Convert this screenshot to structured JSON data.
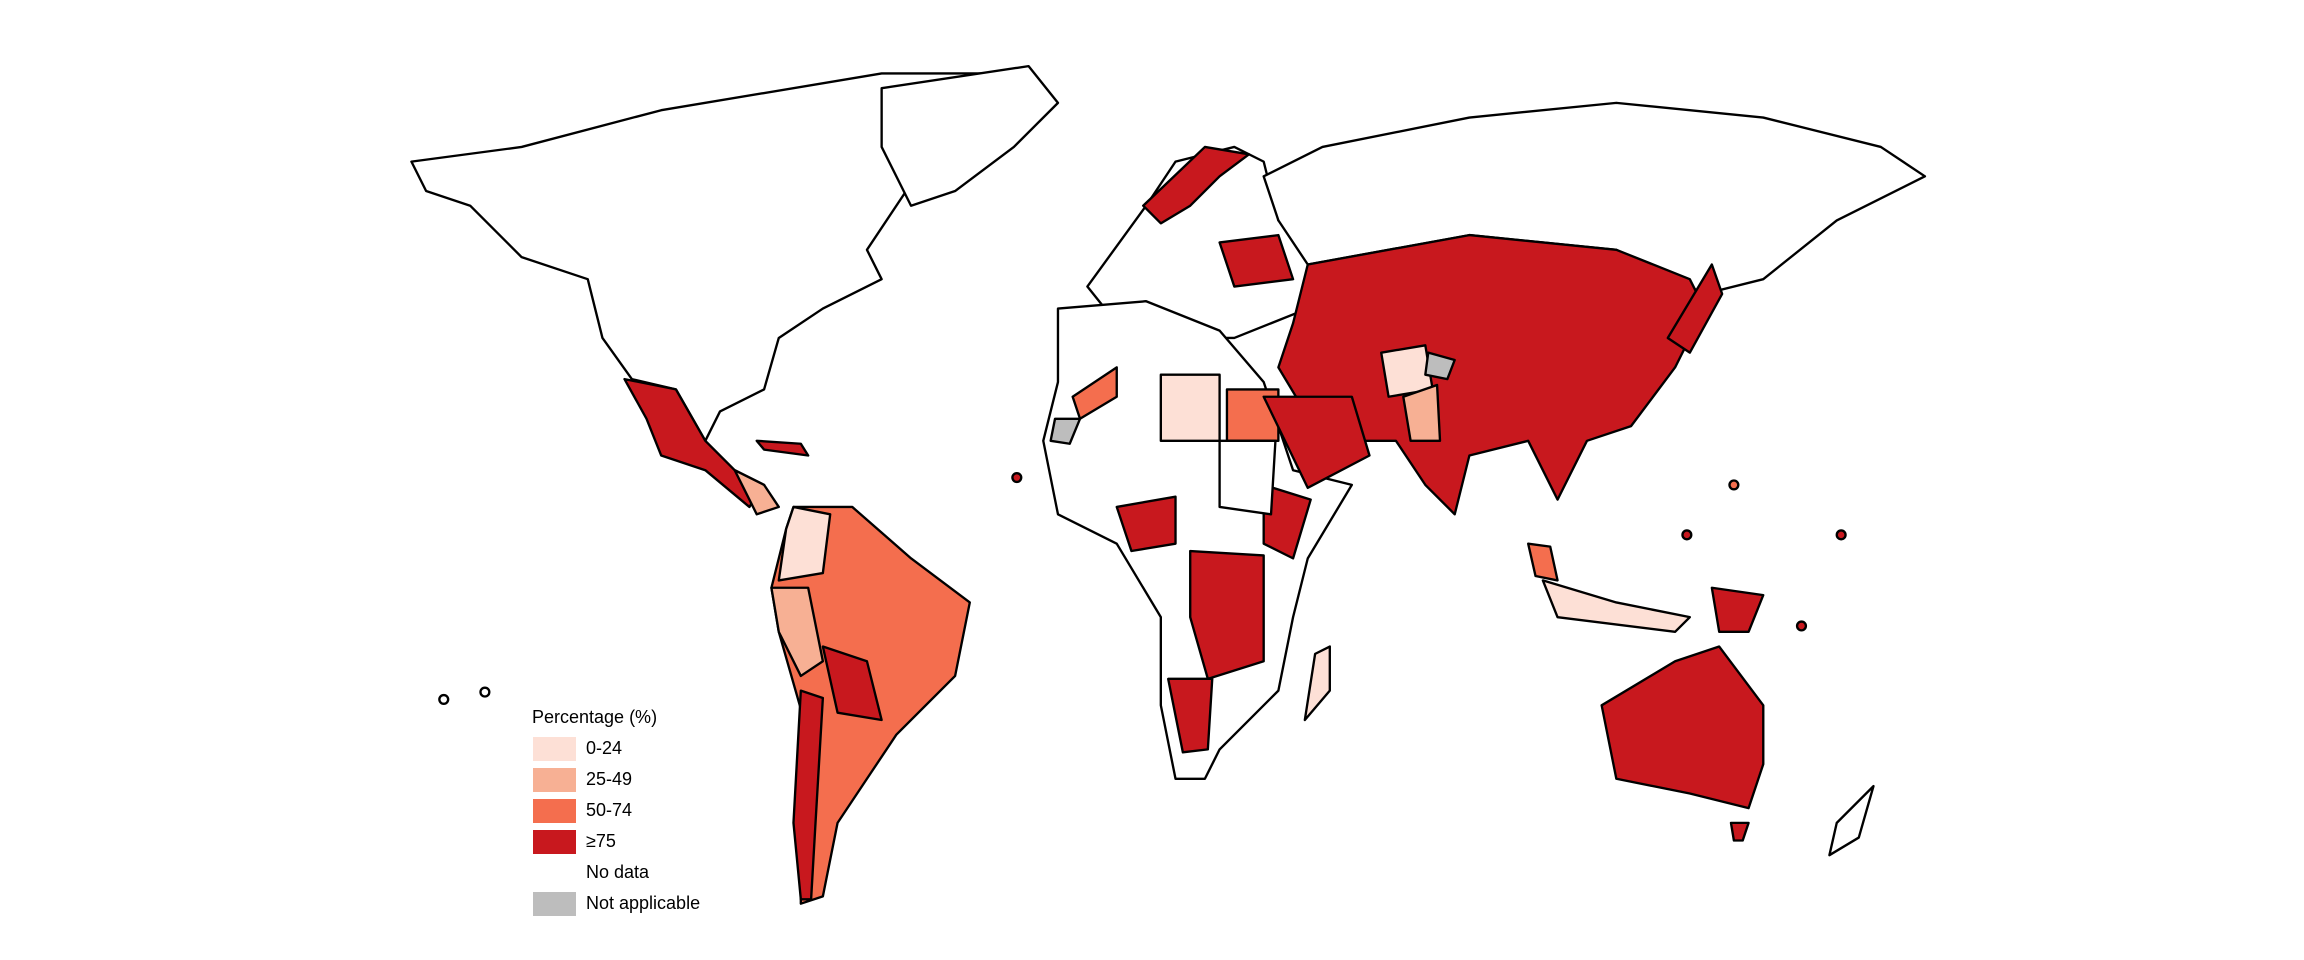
{
  "legend": {
    "title": "Percentage (%)",
    "items": [
      {
        "label": "0-24",
        "color": "#fde0d6"
      },
      {
        "label": "25-49",
        "color": "#f7b094"
      },
      {
        "label": "50-74",
        "color": "#f46e4e"
      },
      {
        "label": "≥75",
        "color": "#c8181e"
      },
      {
        "label": "No data",
        "color": "#ffffff"
      },
      {
        "label": "Not applicable",
        "color": "#bdbdbd"
      }
    ]
  }
}
